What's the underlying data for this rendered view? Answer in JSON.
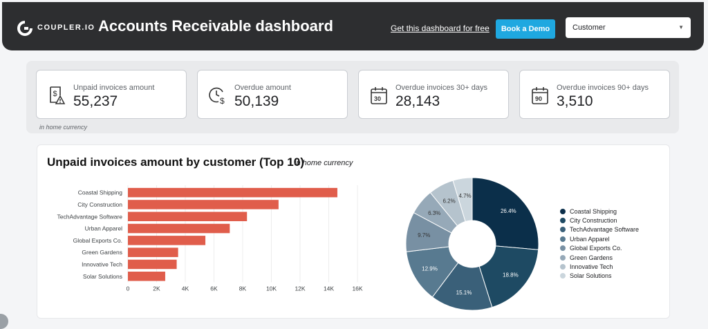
{
  "header": {
    "logo_text": "COUPLER.IO",
    "title": "Accounts Receivable dashboard",
    "link_text": "Get this dashboard for free",
    "demo_button": "Book a Demo",
    "filter_value": "Customer",
    "filter_caret": "▼"
  },
  "kpis": [
    {
      "label": "Unpaid invoices amount",
      "value": "55,237",
      "icon": "invoice-warning-icon"
    },
    {
      "label": "Overdue amount",
      "value": "50,139",
      "icon": "clock-dollar-icon"
    },
    {
      "label": "Overdue invoices 30+ days",
      "value": "28,143",
      "icon": "calendar-30-icon",
      "badge": "30"
    },
    {
      "label": "Overdue invoices 90+ days",
      "value": "3,510",
      "icon": "calendar-90-icon",
      "badge": "90"
    }
  ],
  "kpi_note": "in home currency",
  "chart_section": {
    "title": "Unpaid invoices amount by customer (Top 10)",
    "subtitle": "in home currency"
  },
  "colors": {
    "bar": "#e05d4b",
    "pie": [
      "#0b2f4a",
      "#1e4a63",
      "#3a6079",
      "#587a90",
      "#7890a3",
      "#96a9b8",
      "#b5c3cd",
      "#cbd6dd"
    ]
  },
  "chart_data": [
    {
      "type": "bar",
      "orientation": "horizontal",
      "categories": [
        "Coastal Shipping",
        "City Construction",
        "TechAdvantage Software",
        "Urban Apparel",
        "Global Exports Co.",
        "Green Gardens",
        "Innovative Tech",
        "Solar Solutions"
      ],
      "values": [
        14600,
        10500,
        8300,
        7100,
        5400,
        3500,
        3400,
        2600
      ],
      "xticks": [
        "0",
        "2K",
        "4K",
        "6K",
        "8K",
        "10K",
        "12K",
        "14K",
        "16K"
      ],
      "xlim": [
        0,
        16000
      ],
      "grid": true
    },
    {
      "type": "pie",
      "donut": true,
      "categories": [
        "Coastal Shipping",
        "City Construction",
        "TechAdvantage Software",
        "Urban Apparel",
        "Global Exports Co.",
        "Green Gardens",
        "Innovative Tech",
        "Solar Solutions"
      ],
      "values": [
        26.4,
        18.8,
        15.1,
        12.9,
        9.7,
        6.3,
        6.2,
        4.7
      ],
      "labels": [
        "26.4%",
        "18.8%",
        "15.1%",
        "12.9%",
        "9.7%",
        "6.3%",
        "6.2%",
        "4.7%"
      ],
      "legend": "right"
    }
  ]
}
